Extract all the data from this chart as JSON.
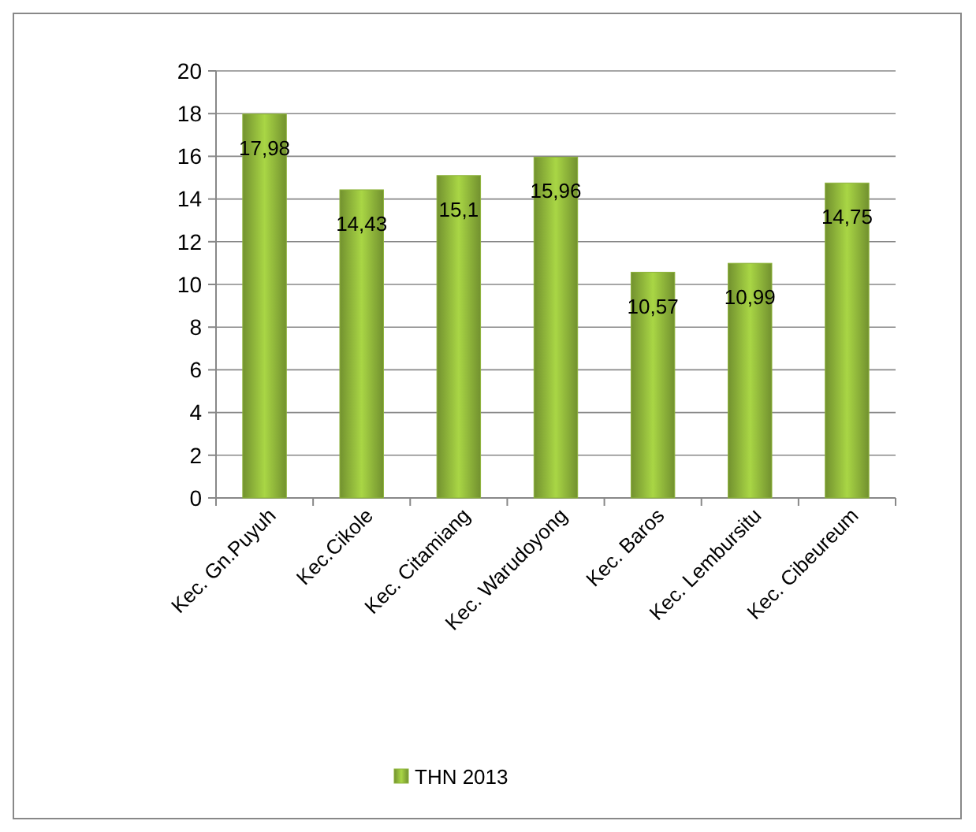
{
  "chart_data": {
    "type": "bar",
    "categories": [
      "Kec. Gn.Puyuh",
      "Kec.Cikole",
      "Kec. Citamiang",
      "Kec. Warudoyong",
      "Kec. Baros",
      "Kec. Lembursitu",
      "Kec. Cibeureum"
    ],
    "series": [
      {
        "name": "THN 2013",
        "color": "#8db33a",
        "values": [
          17.98,
          14.43,
          15.1,
          15.96,
          10.57,
          10.99,
          14.75
        ],
        "value_labels": [
          "17,98",
          "14,43",
          "15,1",
          "15,96",
          "10,57",
          "10,99",
          "14,75"
        ]
      }
    ],
    "ylim": [
      0,
      20
    ],
    "yticks": [
      0,
      2,
      4,
      6,
      8,
      10,
      12,
      14,
      16,
      18,
      20
    ],
    "grid": "y",
    "legend": "bottom"
  }
}
